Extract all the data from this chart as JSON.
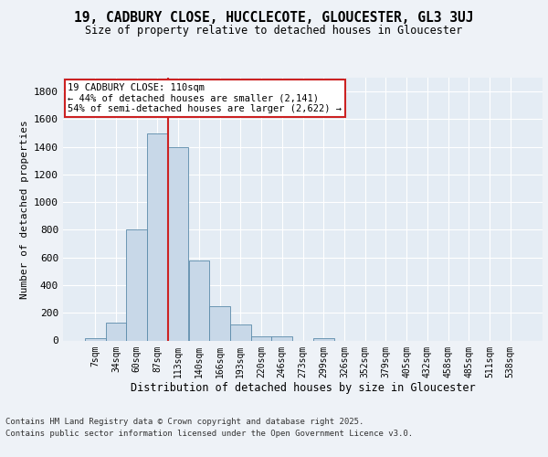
{
  "title": "19, CADBURY CLOSE, HUCCLECOTE, GLOUCESTER, GL3 3UJ",
  "subtitle": "Size of property relative to detached houses in Gloucester",
  "xlabel": "Distribution of detached houses by size in Gloucester",
  "ylabel": "Number of detached properties",
  "bin_labels": [
    "7sqm",
    "34sqm",
    "60sqm",
    "87sqm",
    "113sqm",
    "140sqm",
    "166sqm",
    "193sqm",
    "220sqm",
    "246sqm",
    "273sqm",
    "299sqm",
    "326sqm",
    "352sqm",
    "379sqm",
    "405sqm",
    "432sqm",
    "458sqm",
    "485sqm",
    "511sqm",
    "538sqm"
  ],
  "bar_heights": [
    15,
    130,
    800,
    1500,
    1400,
    575,
    250,
    115,
    30,
    30,
    0,
    15,
    0,
    0,
    0,
    0,
    0,
    0,
    0,
    0,
    0
  ],
  "bar_color": "#c8d8e8",
  "bar_edge_color": "#5a8aaa",
  "background_color": "#eef2f7",
  "ax_background_color": "#e4ecf4",
  "grid_color": "#ffffff",
  "vline_color": "#cc2222",
  "annotation_text": "19 CADBURY CLOSE: 110sqm\n← 44% of detached houses are smaller (2,141)\n54% of semi-detached houses are larger (2,622) →",
  "annotation_box_color": "#ffffff",
  "annotation_border_color": "#cc2222",
  "ylim": [
    0,
    1900
  ],
  "yticks": [
    0,
    200,
    400,
    600,
    800,
    1000,
    1200,
    1400,
    1600,
    1800
  ],
  "footer_line1": "Contains HM Land Registry data © Crown copyright and database right 2025.",
  "footer_line2": "Contains public sector information licensed under the Open Government Licence v3.0."
}
